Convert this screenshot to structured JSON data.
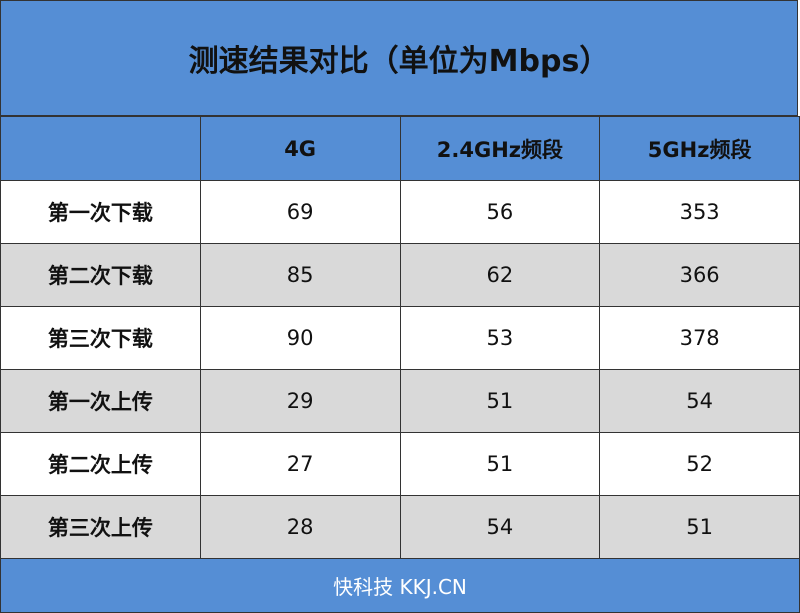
{
  "chart_data": {
    "type": "table",
    "title": "测速结果对比（单位为Mbps）",
    "columns": [
      "",
      "4G",
      "2.4GHz频段",
      "5GHz频段"
    ],
    "rows": [
      {
        "label": "第一次下载",
        "values": [
          69,
          56,
          353
        ]
      },
      {
        "label": "第二次下载",
        "values": [
          85,
          62,
          366
        ]
      },
      {
        "label": "第三次下载",
        "values": [
          90,
          53,
          378
        ]
      },
      {
        "label": "第一次上传",
        "values": [
          29,
          51,
          54
        ]
      },
      {
        "label": "第二次上传",
        "values": [
          27,
          51,
          52
        ]
      },
      {
        "label": "第三次上传",
        "values": [
          28,
          54,
          51
        ]
      }
    ]
  },
  "footer": "快科技 KKJ.CN",
  "colors": {
    "header": "#558ed5",
    "stripe": "#d9d9d9",
    "border": "#333333"
  }
}
